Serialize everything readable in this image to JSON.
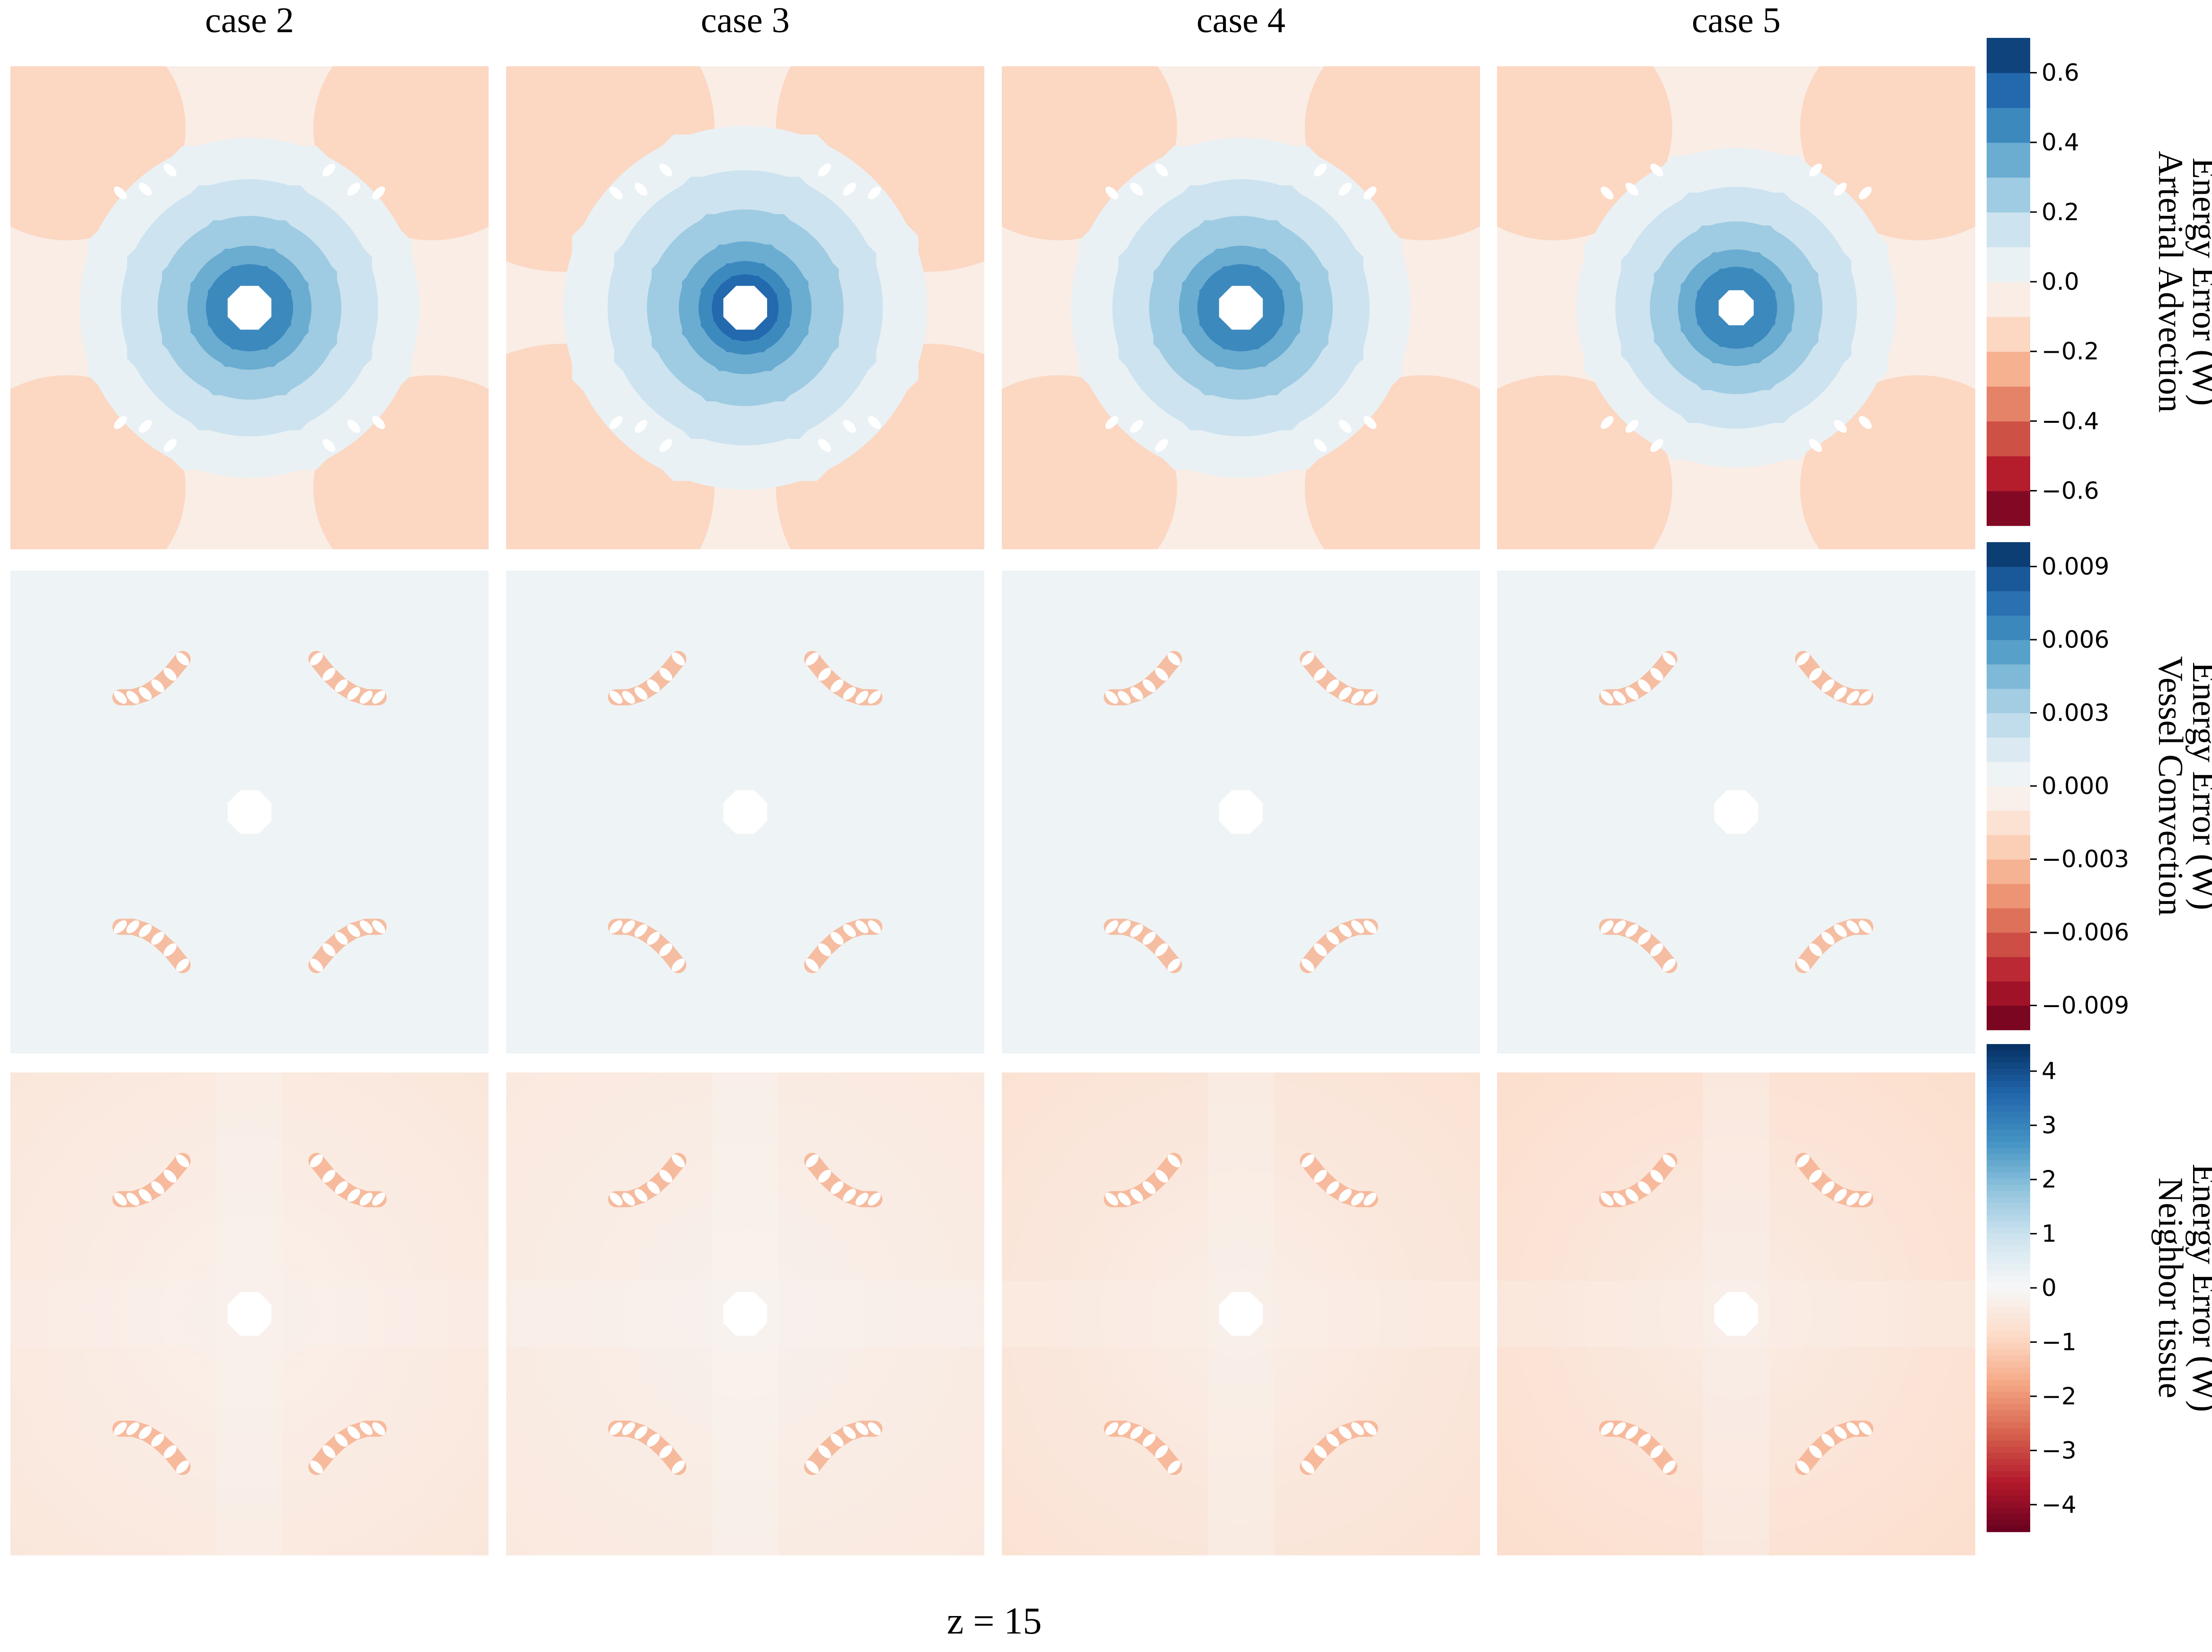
{
  "figure": {
    "footer": "z = 15"
  },
  "chart_data": {
    "type": "heatmap",
    "columns": [
      "case 2",
      "case 3",
      "case 4",
      "case 5"
    ],
    "rows": [
      {
        "id": "arterial",
        "colorbar_label": [
          "Arterial Advection",
          "Energy Error (W)"
        ],
        "vmin": -0.7,
        "vmax": 0.7,
        "levels": 14,
        "ticks": [
          0.6,
          0.4,
          0.2,
          0.0,
          -0.2,
          -0.4,
          -0.6
        ],
        "tick_labels": [
          "0.6",
          "0.4",
          "0.2",
          "0.0",
          "−0.2",
          "−0.4",
          "−0.6"
        ],
        "panels": [
          {
            "case": "case 2",
            "center_peak": 0.45,
            "corner_value": -0.13
          },
          {
            "case": "case 3",
            "center_peak": 0.55,
            "corner_value": -0.15
          },
          {
            "case": "case 4",
            "center_peak": 0.45,
            "corner_value": -0.13
          },
          {
            "case": "case 5",
            "center_peak": 0.4,
            "corner_value": -0.13
          }
        ]
      },
      {
        "id": "vessel",
        "colorbar_label": [
          "Vessel Convection",
          "Energy Error (W)"
        ],
        "vmin": -0.01,
        "vmax": 0.01,
        "levels": 20,
        "ticks": [
          0.009,
          0.006,
          0.003,
          0.0,
          -0.003,
          -0.006,
          -0.009
        ],
        "tick_labels": [
          "0.009",
          "0.006",
          "0.003",
          "0.000",
          "−0.003",
          "−0.006",
          "−0.009"
        ],
        "panels": [
          {
            "case": "case 2",
            "background_value": 0.0005,
            "vessel_edge_value": -0.004
          },
          {
            "case": "case 3",
            "background_value": 0.0005,
            "vessel_edge_value": -0.004
          },
          {
            "case": "case 4",
            "background_value": 0.0005,
            "vessel_edge_value": -0.004
          },
          {
            "case": "case 5",
            "background_value": 0.0005,
            "vessel_edge_value": -0.004
          }
        ]
      },
      {
        "id": "neighbor",
        "colorbar_label": [
          "Neighbor tissue",
          "Energy Error (W)"
        ],
        "vmin": -4.5,
        "vmax": 4.5,
        "levels": 256,
        "ticks": [
          4,
          3,
          2,
          1,
          0,
          -1,
          -2,
          -3,
          -4
        ],
        "tick_labels": [
          "4",
          "3",
          "2",
          "1",
          "0",
          "−1",
          "−2",
          "−3",
          "−4"
        ],
        "panels": [
          {
            "case": "case 2",
            "background_value": -0.4
          },
          {
            "case": "case 3",
            "background_value": -0.35
          },
          {
            "case": "case 4",
            "background_value": -0.5
          },
          {
            "case": "case 5",
            "background_value": -0.6
          }
        ]
      }
    ],
    "xlabel": "z = 15"
  },
  "colors": {
    "cmap": "RdBu",
    "white": "#ffffff"
  }
}
